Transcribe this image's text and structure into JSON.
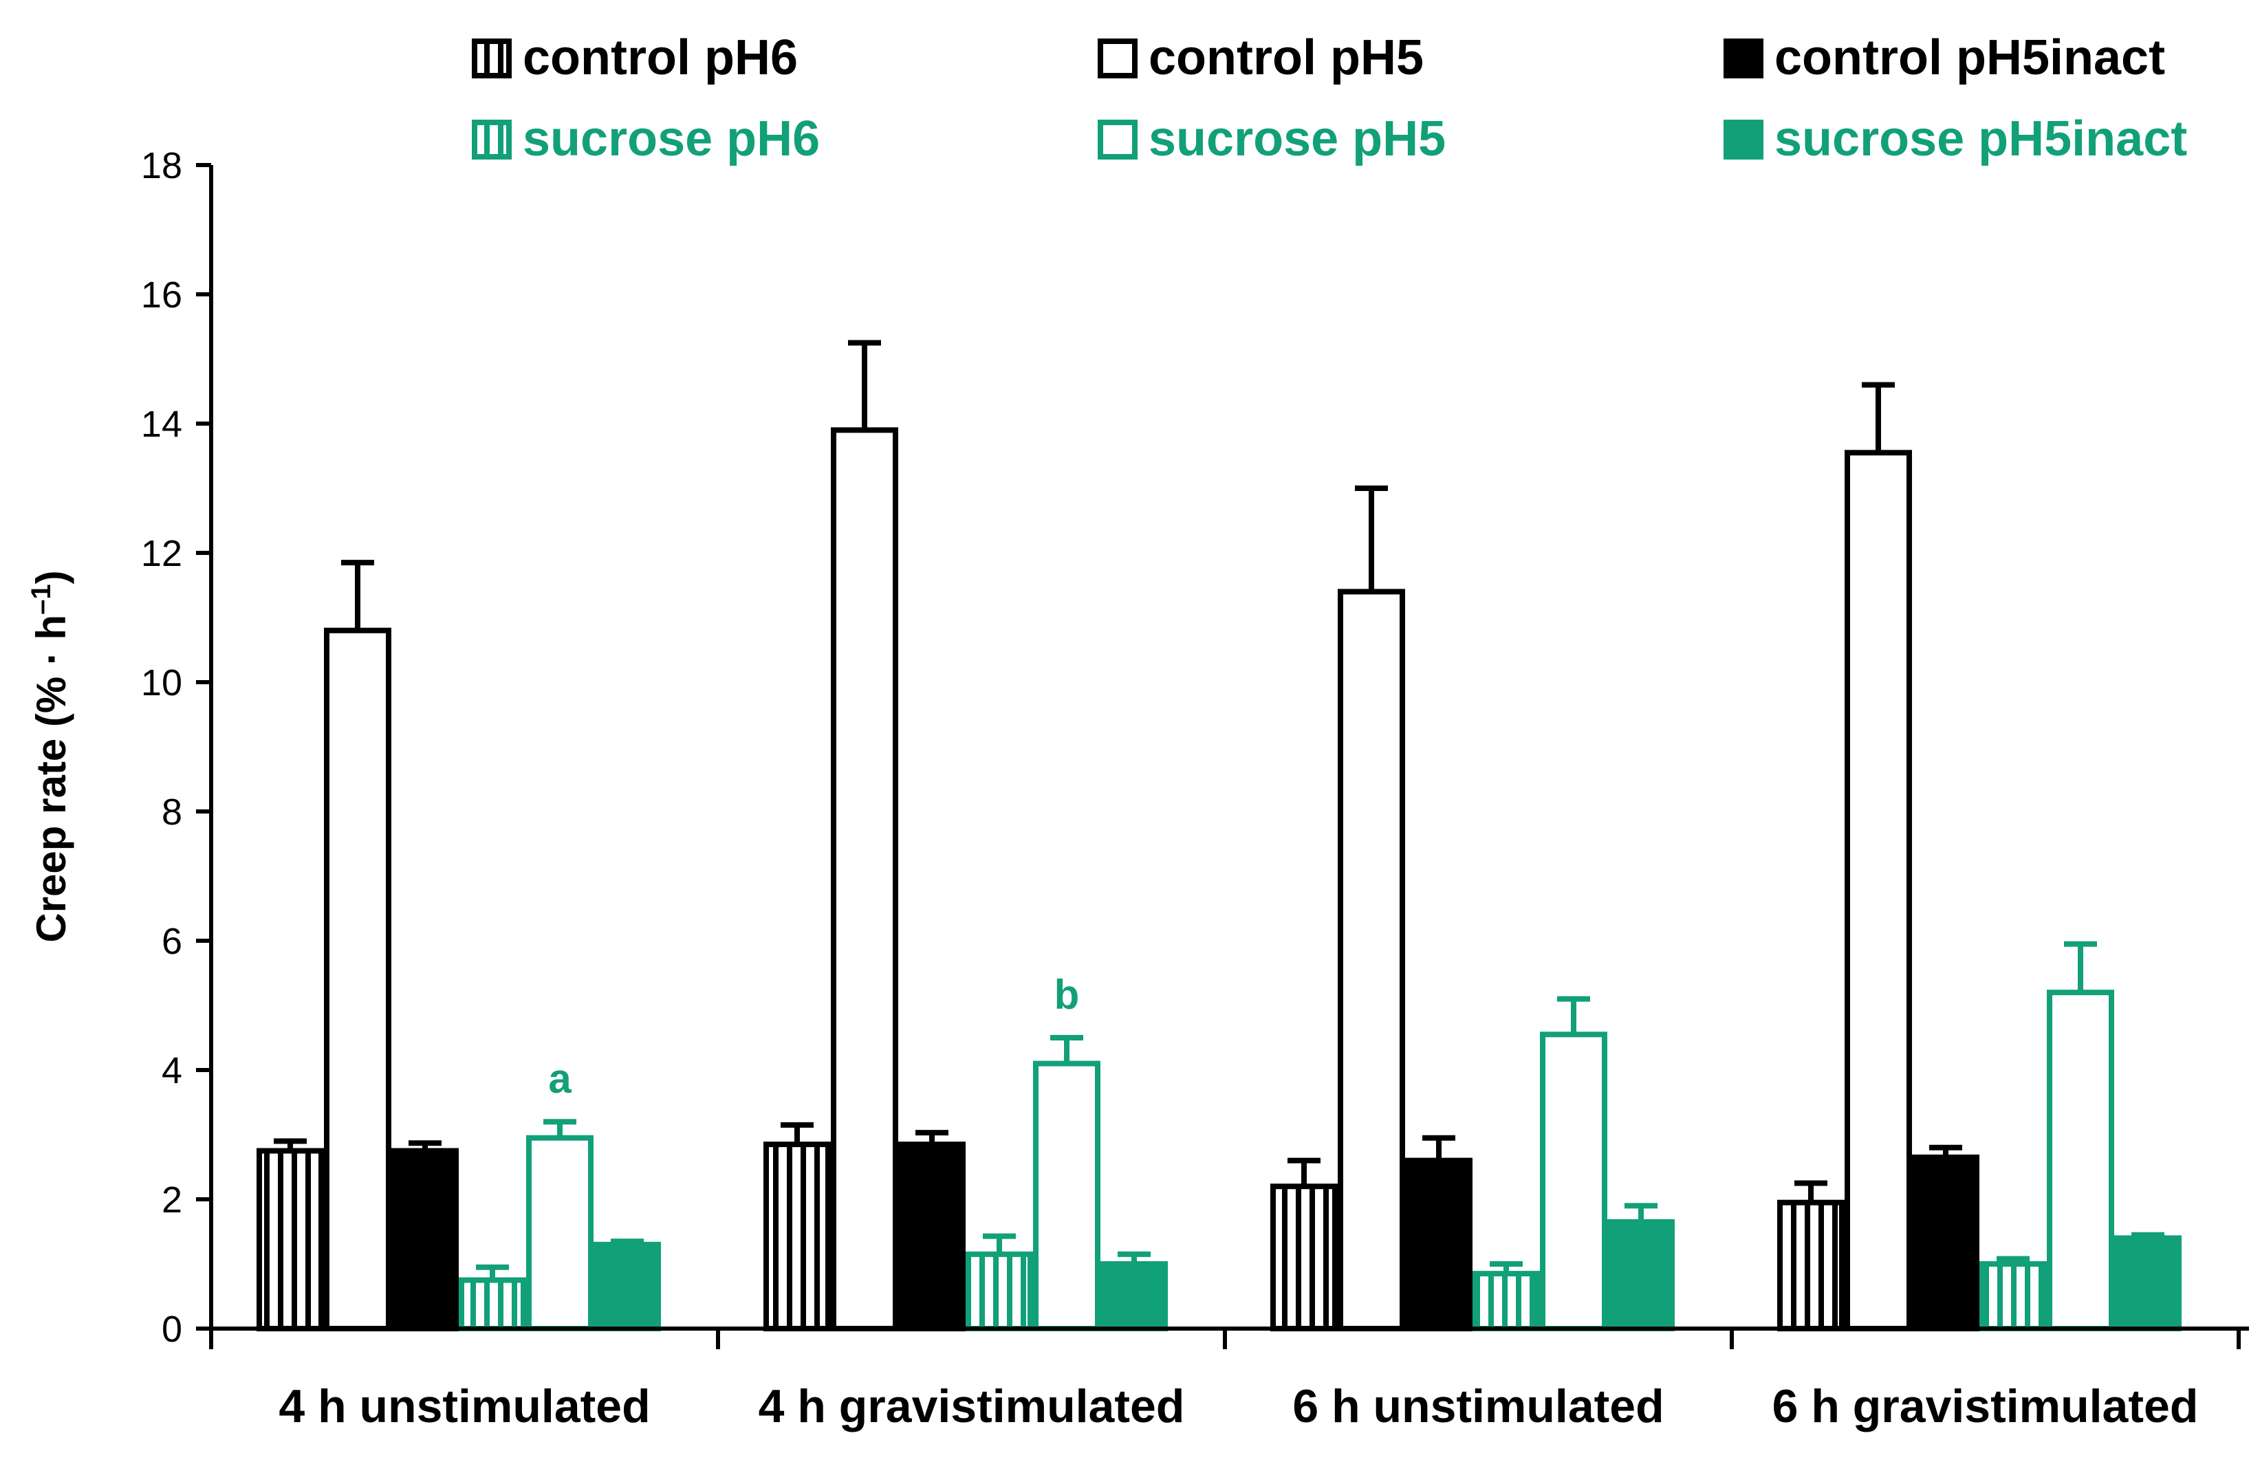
{
  "chart_data": {
    "type": "bar",
    "title": "",
    "xlabel": "",
    "ylabel_main": "Creep rate (% · h",
    "ylabel_sup": "–1",
    "ylabel_close": ")",
    "ylim": [
      0,
      18
    ],
    "yticks": [
      "0",
      "2",
      "4",
      "6",
      "8",
      "10",
      "12",
      "14",
      "16",
      "18"
    ],
    "grid": false,
    "legend_position": "top",
    "categories": [
      "4 h unstimulated",
      "4 h gravistimulated",
      "6 h unstimulated",
      "6 h gravistimulated"
    ],
    "series": [
      {
        "name": "control pH6",
        "color": "#000000",
        "pattern": "stripes",
        "values": [
          2.75,
          2.85,
          2.2,
          1.95
        ],
        "errors": [
          0.15,
          0.3,
          0.4,
          0.3
        ]
      },
      {
        "name": "control pH5",
        "color": "#000000",
        "pattern": "open",
        "values": [
          10.8,
          13.9,
          11.4,
          13.55
        ],
        "errors": [
          1.05,
          1.35,
          1.6,
          1.05
        ]
      },
      {
        "name": "control pH5inact",
        "color": "#000000",
        "pattern": "solid",
        "values": [
          2.75,
          2.85,
          2.6,
          2.65
        ],
        "errors": [
          0.12,
          0.18,
          0.35,
          0.15
        ]
      },
      {
        "name": "sucrose pH6",
        "color": "#12a079",
        "pattern": "stripes",
        "values": [
          0.75,
          1.15,
          0.85,
          1.0
        ],
        "errors": [
          0.2,
          0.28,
          0.15,
          0.08
        ]
      },
      {
        "name": "sucrose pH5",
        "color": "#12a079",
        "pattern": "open",
        "values": [
          2.95,
          4.1,
          4.55,
          5.2
        ],
        "errors": [
          0.25,
          0.4,
          0.55,
          0.75
        ]
      },
      {
        "name": "sucrose pH5inact",
        "color": "#12a079",
        "pattern": "solid",
        "values": [
          1.3,
          1.0,
          1.65,
          1.4
        ],
        "errors": [
          0.05,
          0.15,
          0.25,
          0.05
        ]
      }
    ],
    "annotations": [
      {
        "text": "a",
        "category_index": 0,
        "series_index": 4
      },
      {
        "text": "b",
        "category_index": 1,
        "series_index": 4
      }
    ]
  }
}
